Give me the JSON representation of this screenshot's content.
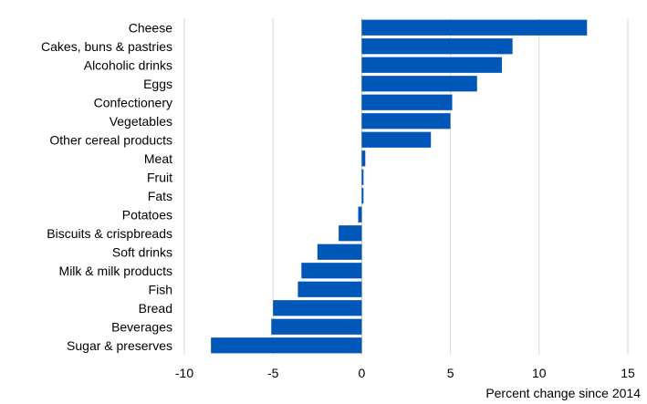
{
  "chart_data": {
    "type": "bar",
    "orientation": "horizontal",
    "title": "",
    "xlabel": "Percent change since 2014",
    "ylabel": "",
    "categories": [
      "Cheese",
      "Cakes, buns & pastries",
      "Alcoholic drinks",
      "Eggs",
      "Confectionery",
      "Vegetables",
      "Other cereal products",
      "Meat",
      "Fruit",
      "Fats",
      "Potatoes",
      "Biscuits & crispbreads",
      "Soft drinks",
      "Milk & milk products",
      "Fish",
      "Bread",
      "Beverages",
      "Sugar & preserves"
    ],
    "values": [
      12.7,
      8.5,
      7.9,
      6.5,
      5.1,
      5.0,
      3.9,
      0.2,
      0.1,
      0.1,
      -0.2,
      -1.3,
      -2.5,
      -3.4,
      -3.6,
      -5.0,
      -5.1,
      -8.5
    ],
    "xlim": [
      -10,
      15
    ],
    "xticks": [
      -10,
      -5,
      0,
      5,
      10,
      15
    ],
    "grid": true,
    "legend": "none",
    "bar_color": "#0057b8"
  }
}
